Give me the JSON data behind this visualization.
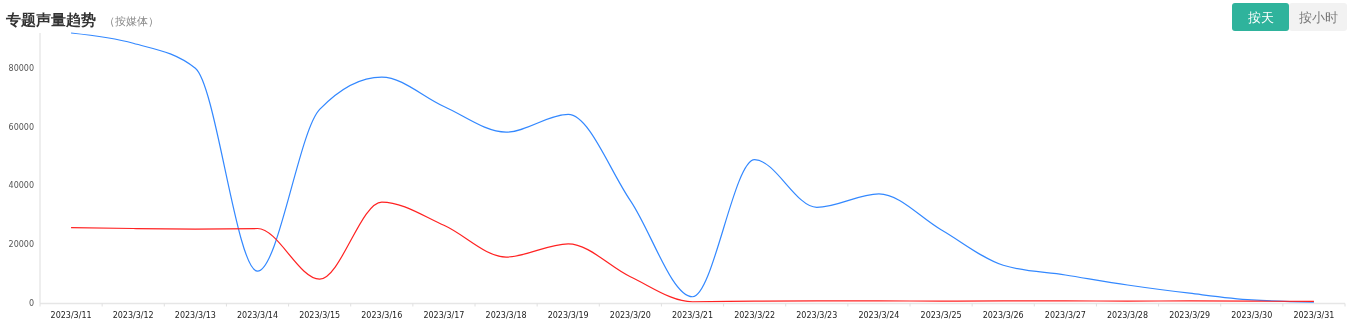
{
  "chart_data": {
    "type": "line",
    "title": "专题声量趋势",
    "subtitle": "（按媒体）",
    "annotations": [
      "按天",
      "按小时"
    ],
    "categories": [
      "2023/3/11",
      "2023/3/12",
      "2023/3/13",
      "2023/3/14",
      "2023/3/15",
      "2023/3/16",
      "2023/3/17",
      "2023/3/18",
      "2023/3/19",
      "2023/3/20",
      "2023/3/21",
      "2023/3/22",
      "2023/3/23",
      "2023/3/24",
      "2023/3/25",
      "2023/3/26",
      "2023/3/27",
      "2023/3/28",
      "2023/3/29",
      "2023/3/30",
      "2023/3/31"
    ],
    "series": [
      {
        "color": "#3388ff",
        "values": [
          92000,
          88500,
          80000,
          11000,
          66000,
          77000,
          67000,
          58300,
          64300,
          35000,
          2300,
          48900,
          32700,
          37300,
          25100,
          13000,
          9700,
          6300,
          3500,
          1200,
          500
        ]
      },
      {
        "color": "#ff2222",
        "values": [
          25800,
          25500,
          25300,
          25500,
          8300,
          34500,
          26600,
          15800,
          20300,
          9100,
          600,
          800,
          900,
          900,
          800,
          900,
          900,
          800,
          900,
          800,
          700
        ]
      }
    ],
    "ylim": [
      0,
      92000
    ],
    "yticks": [
      0,
      20000,
      40000,
      60000,
      80000
    ],
    "grid": false,
    "marker": "none",
    "line_style": "solid"
  }
}
